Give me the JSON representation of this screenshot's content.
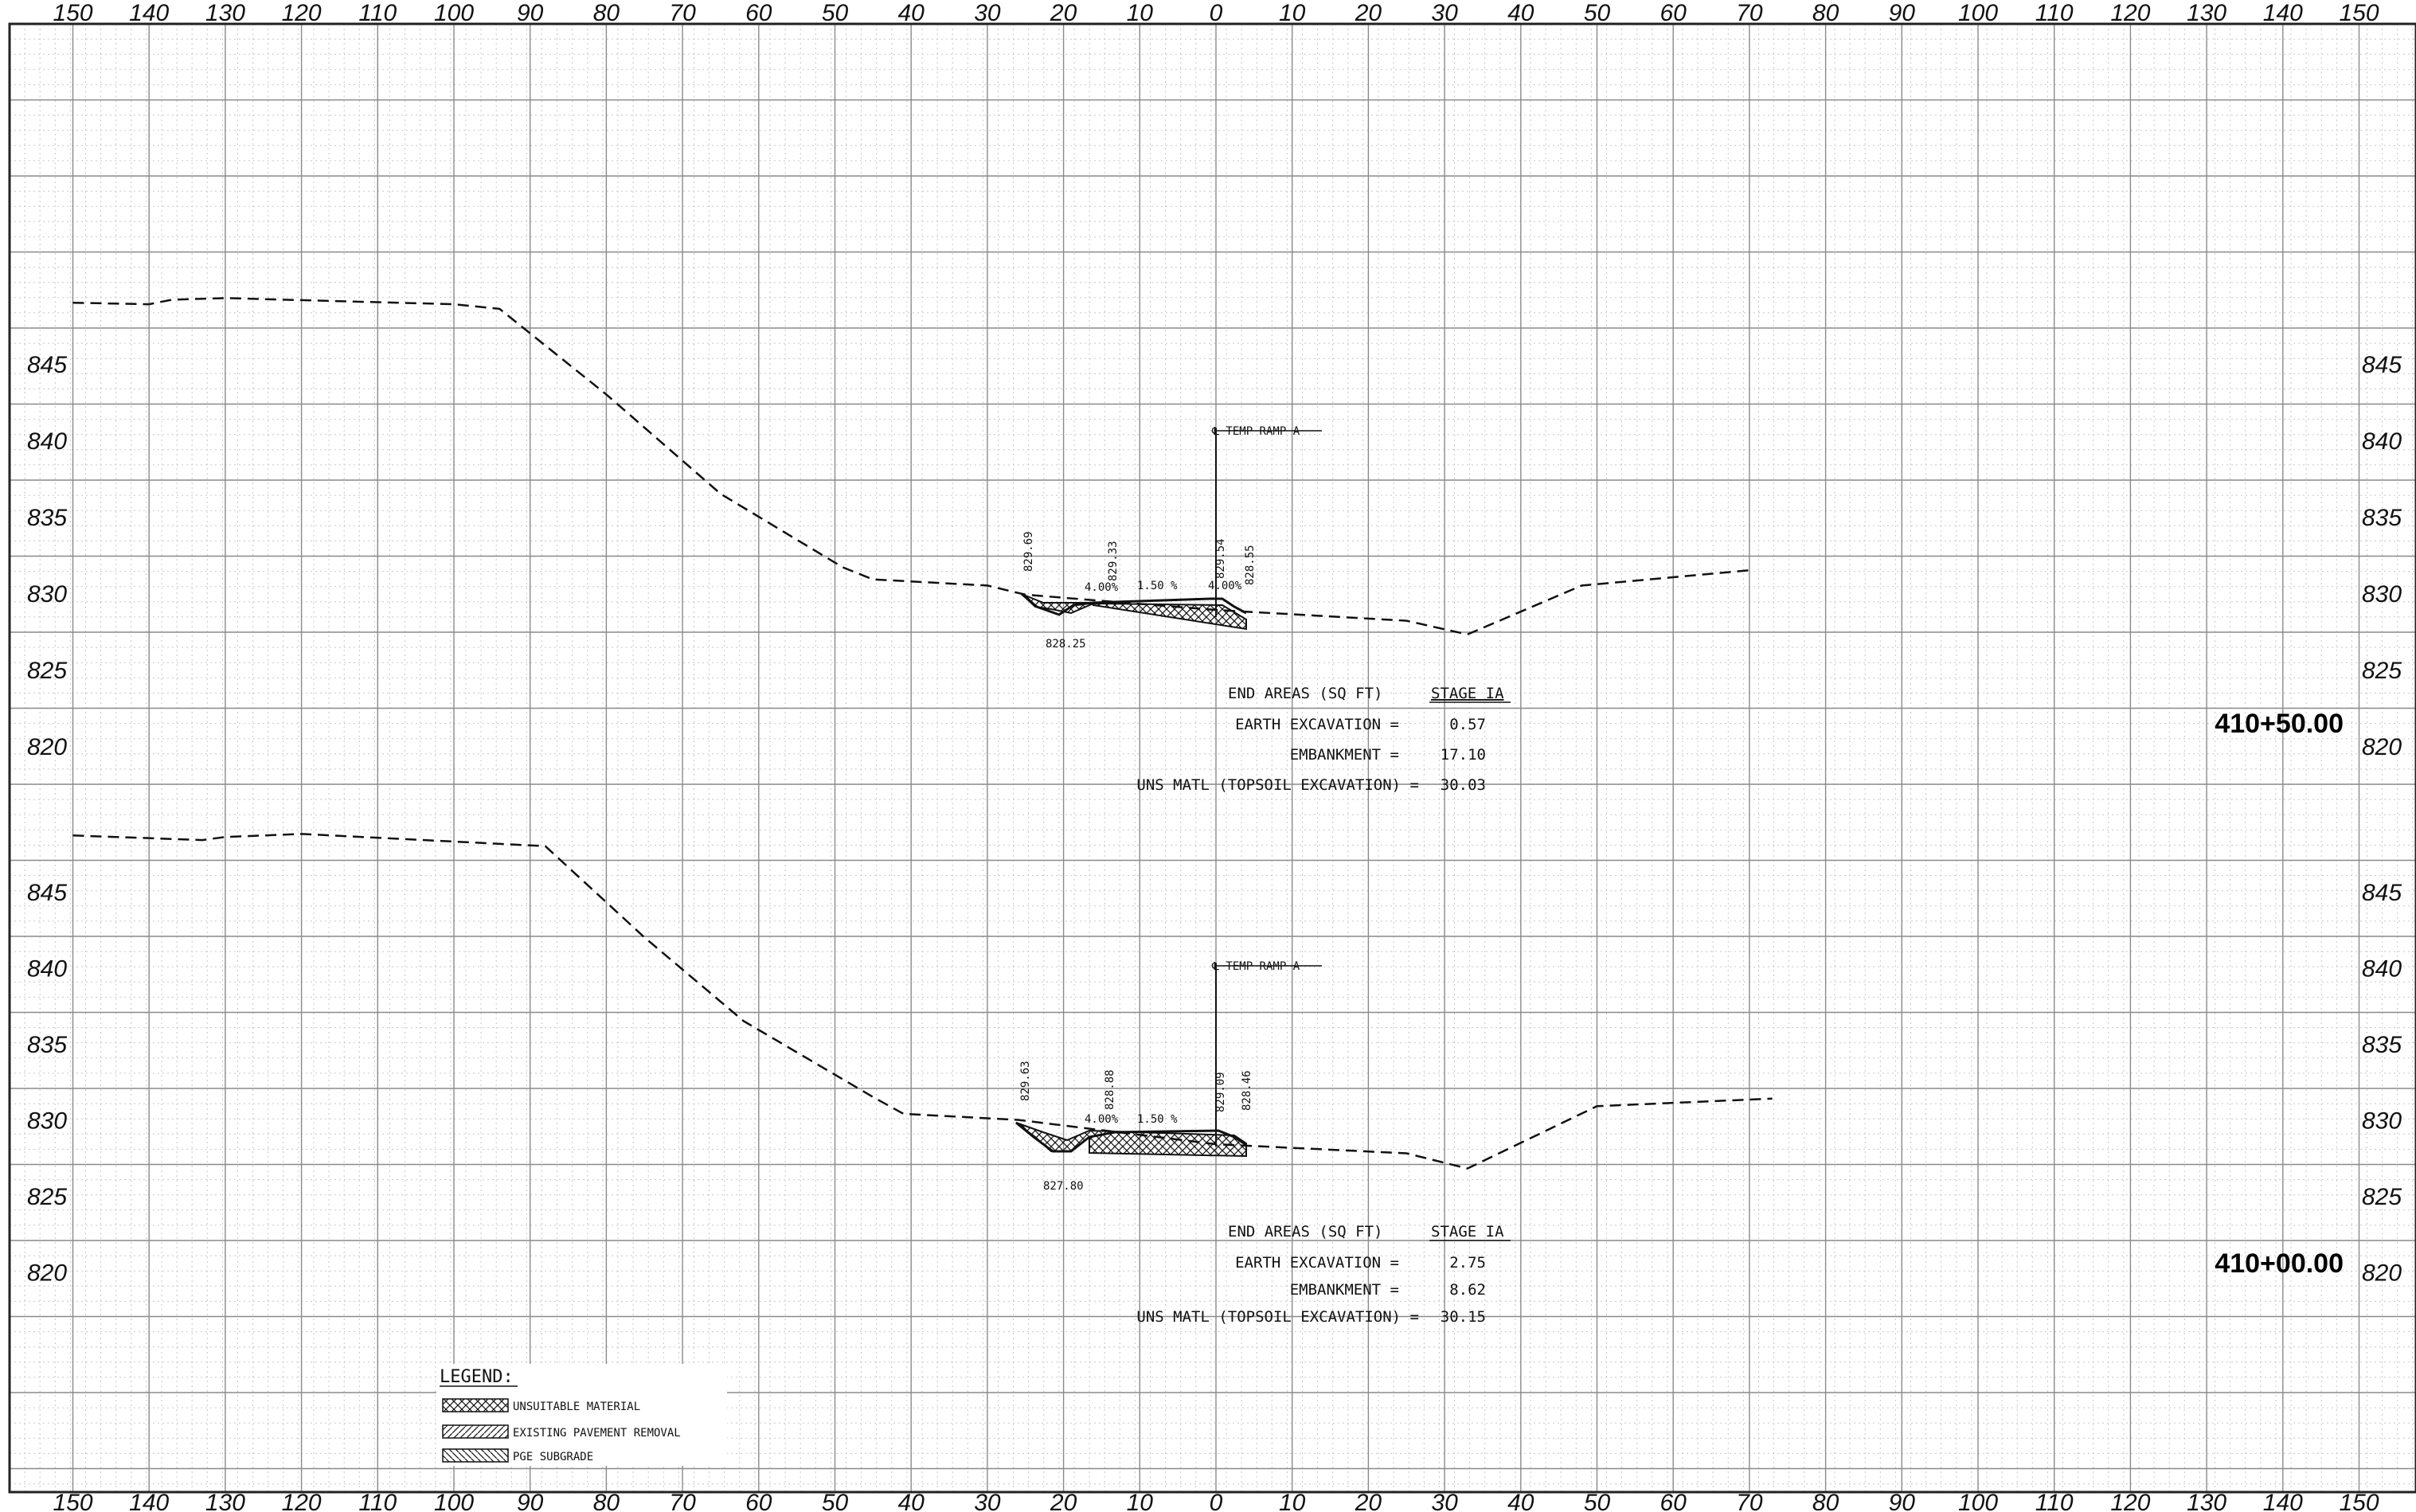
{
  "offset_ticks": [
    "150",
    "140",
    "130",
    "120",
    "110",
    "100",
    "90",
    "80",
    "70",
    "60",
    "50",
    "40",
    "30",
    "20",
    "10",
    "0",
    "10",
    "20",
    "30",
    "40",
    "50",
    "60",
    "70",
    "80",
    "90",
    "100",
    "110",
    "120",
    "130",
    "140",
    "150"
  ],
  "colors": {
    "grid_major": "#8a8a8a",
    "grid_minor": "#c8c8c8",
    "line": "#111111"
  },
  "sections": [
    {
      "station": "410+50.00",
      "elevation_labels": [
        "845",
        "840",
        "835",
        "830",
        "825",
        "820"
      ],
      "centerline_label": "℄ TEMP RAMP A",
      "profile_elevations": [
        {
          "offset": -150,
          "elev": 849.0
        },
        {
          "offset": -140,
          "elev": 848.9
        },
        {
          "offset": -137,
          "elev": 849.2
        },
        {
          "offset": -130,
          "elev": 849.3
        },
        {
          "offset": -100,
          "elev": 848.9
        },
        {
          "offset": -94,
          "elev": 848.6
        },
        {
          "offset": -80,
          "elev": 843.0
        },
        {
          "offset": -65,
          "elev": 836.5
        },
        {
          "offset": -49,
          "elev": 831.7
        },
        {
          "offset": -45,
          "elev": 830.9
        },
        {
          "offset": -30,
          "elev": 830.5
        },
        {
          "offset": -25,
          "elev": 829.9
        },
        {
          "offset": 0,
          "elev": 828.9
        },
        {
          "offset": 25,
          "elev": 828.2
        },
        {
          "offset": 33,
          "elev": 827.3
        },
        {
          "offset": 48,
          "elev": 830.5
        },
        {
          "offset": 70,
          "elev": 831.5
        }
      ],
      "elevation_annotations": [
        "829.69",
        "829.33",
        "829.54",
        "828.55",
        "828.25"
      ],
      "slope_labels": [
        "4.00%",
        "1.50 %",
        "4.00%"
      ],
      "end_areas": {
        "header": "END AREAS (SQ FT)",
        "stage": "STAGE IA",
        "rows": [
          {
            "label": "EARTH EXCAVATION =",
            "value": "0.57"
          },
          {
            "label": "EMBANKMENT =",
            "value": "17.10"
          },
          {
            "label": "UNS MATL (TOPSOIL EXCAVATION) =",
            "value": "30.03"
          }
        ]
      }
    },
    {
      "station": "410+00.00",
      "elevation_labels": [
        "845",
        "840",
        "835",
        "830",
        "825",
        "820"
      ],
      "centerline_label": "℄ TEMP RAMP A",
      "profile_elevations": [
        {
          "offset": -150,
          "elev": 848.7
        },
        {
          "offset": -133,
          "elev": 848.4
        },
        {
          "offset": -130,
          "elev": 848.6
        },
        {
          "offset": -120,
          "elev": 848.8
        },
        {
          "offset": -88,
          "elev": 848.0
        },
        {
          "offset": -75,
          "elev": 842.0
        },
        {
          "offset": -62,
          "elev": 836.5
        },
        {
          "offset": -45,
          "elev": 831.5
        },
        {
          "offset": -41,
          "elev": 830.4
        },
        {
          "offset": -26,
          "elev": 830.0
        },
        {
          "offset": 0,
          "elev": 828.4
        },
        {
          "offset": 25,
          "elev": 827.8
        },
        {
          "offset": 33,
          "elev": 826.8
        },
        {
          "offset": 50,
          "elev": 830.9
        },
        {
          "offset": 73,
          "elev": 831.4
        }
      ],
      "elevation_annotations": [
        "829.63",
        "828.88",
        "829.09",
        "828.46",
        "827.80"
      ],
      "slope_labels": [
        "4.00%",
        "1.50 %"
      ],
      "end_areas": {
        "header": "END AREAS (SQ FT)",
        "stage": "STAGE IA",
        "rows": [
          {
            "label": "EARTH EXCAVATION =",
            "value": "2.75"
          },
          {
            "label": "EMBANKMENT =",
            "value": "8.62"
          },
          {
            "label": "UNS MATL (TOPSOIL EXCAVATION) =",
            "value": "30.15"
          }
        ]
      }
    }
  ],
  "legend": {
    "title": "LEGEND:",
    "items": [
      {
        "label": "UNSUITABLE MATERIAL",
        "pattern": "crosshatch"
      },
      {
        "label": "EXISTING PAVEMENT REMOVAL",
        "pattern": "diagonal"
      },
      {
        "label": "PGE SUBGRADE",
        "pattern": "backslash"
      }
    ]
  }
}
